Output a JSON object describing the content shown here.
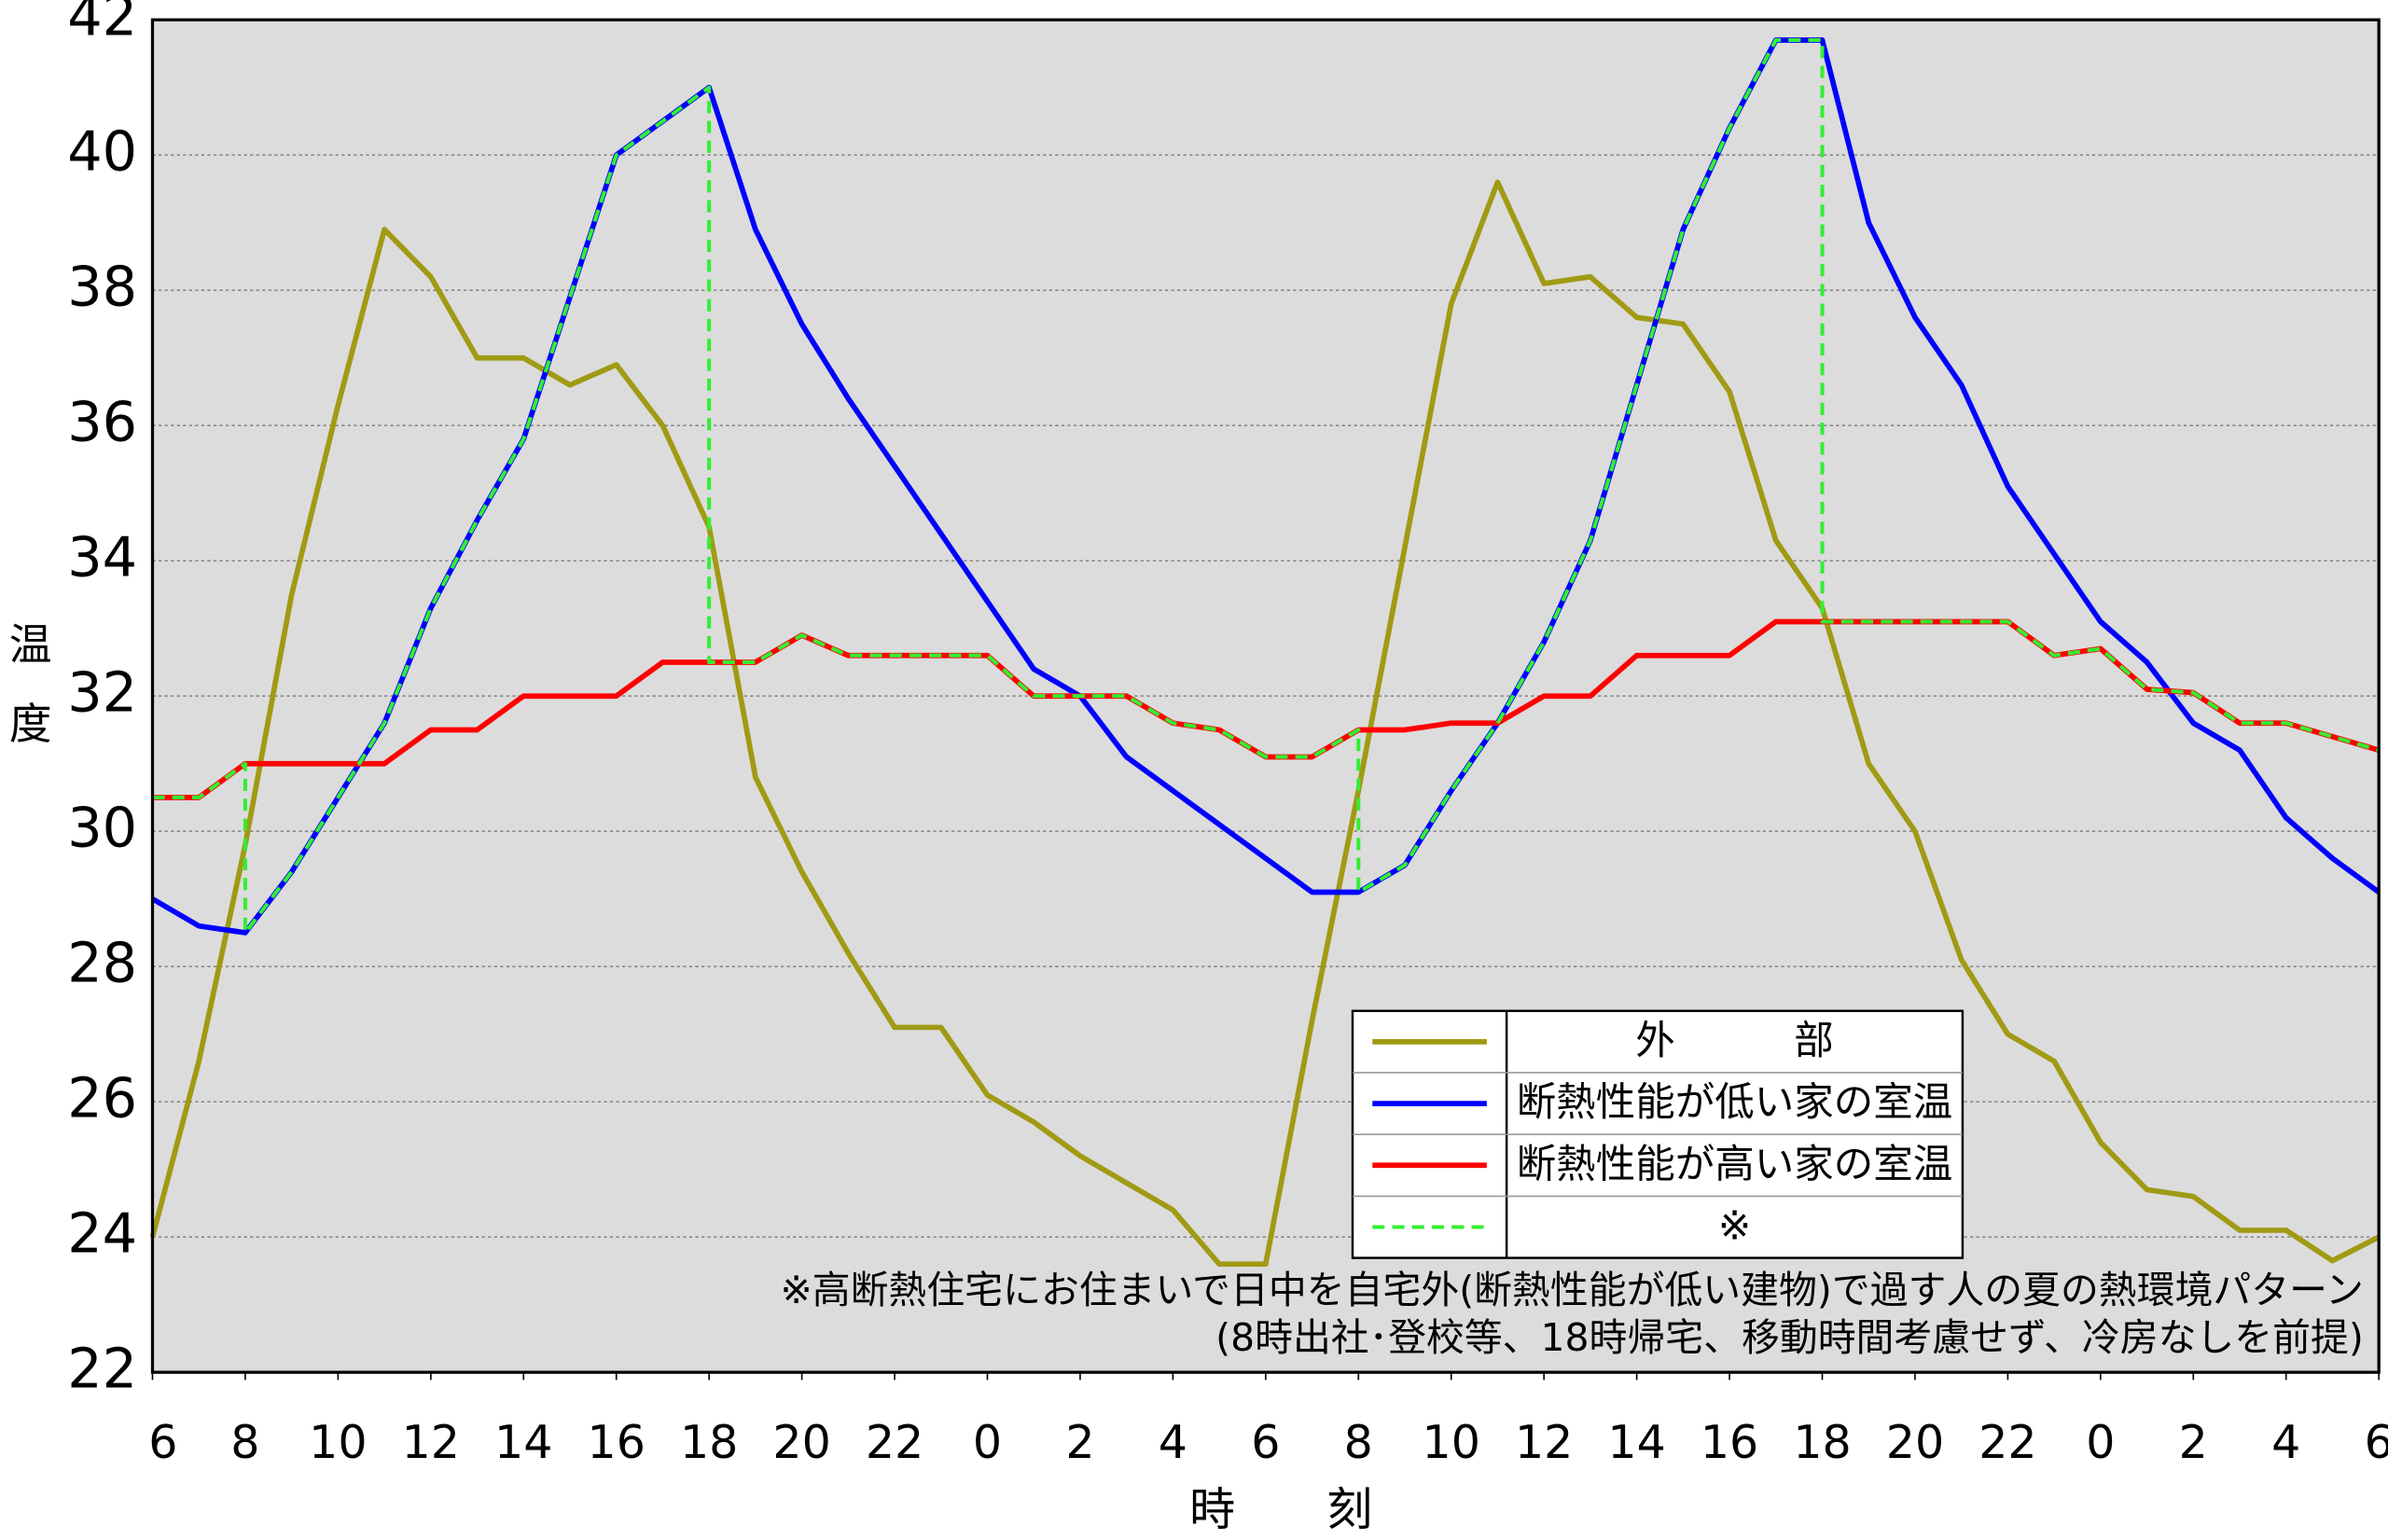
{
  "chart_data": {
    "type": "line",
    "x_label": "時　　刻",
    "y_label": "温度",
    "x": [
      0,
      1,
      2,
      3,
      4,
      5,
      6,
      7,
      8,
      9,
      10,
      11,
      12,
      13,
      14,
      15,
      16,
      17,
      18,
      19,
      20,
      21,
      22,
      23,
      24,
      25,
      26,
      27,
      28,
      29,
      30,
      31,
      32,
      33,
      34,
      35,
      36,
      37,
      38,
      39,
      40,
      41,
      42,
      43,
      44,
      45,
      46,
      47,
      48
    ],
    "xlim": [
      0,
      48
    ],
    "xticks": [
      {
        "value": 0,
        "label": "6"
      },
      {
        "value": 2,
        "label": "8"
      },
      {
        "value": 4,
        "label": "10"
      },
      {
        "value": 6,
        "label": "12"
      },
      {
        "value": 8,
        "label": "14"
      },
      {
        "value": 10,
        "label": "16"
      },
      {
        "value": 12,
        "label": "18"
      },
      {
        "value": 14,
        "label": "20"
      },
      {
        "value": 16,
        "label": "22"
      },
      {
        "value": 18,
        "label": "0"
      },
      {
        "value": 20,
        "label": "2"
      },
      {
        "value": 22,
        "label": "4"
      },
      {
        "value": 24,
        "label": "6"
      },
      {
        "value": 26,
        "label": "8"
      },
      {
        "value": 28,
        "label": "10"
      },
      {
        "value": 30,
        "label": "12"
      },
      {
        "value": 32,
        "label": "14"
      },
      {
        "value": 34,
        "label": "16"
      },
      {
        "value": 36,
        "label": "18"
      },
      {
        "value": 38,
        "label": "20"
      },
      {
        "value": 40,
        "label": "22"
      },
      {
        "value": 42,
        "label": "0"
      },
      {
        "value": 44,
        "label": "2"
      },
      {
        "value": 46,
        "label": "4"
      },
      {
        "value": 48,
        "label": "6"
      }
    ],
    "ylim": [
      22,
      42
    ],
    "yticks": [
      22,
      24,
      26,
      28,
      30,
      32,
      34,
      36,
      38,
      40,
      42
    ],
    "grid": true,
    "series": [
      {
        "name": "外　　　部",
        "color": "#a09a14",
        "values": [
          24.0,
          26.6,
          29.8,
          33.5,
          36.3,
          38.9,
          38.2,
          37.0,
          37.0,
          36.6,
          36.9,
          36.0,
          34.5,
          30.8,
          29.4,
          28.2,
          27.1,
          27.1,
          26.1,
          25.7,
          25.2,
          24.8,
          24.4,
          23.6,
          23.6,
          27.2,
          30.6,
          34.2,
          37.8,
          39.6,
          38.1,
          38.2,
          37.6,
          37.5,
          36.5,
          34.3,
          33.3,
          31.0,
          30.0,
          28.1,
          27.0,
          26.6,
          25.4,
          24.7,
          24.6,
          24.1,
          24.1,
          23.65,
          24.0
        ]
      },
      {
        "name": "断熱性能が低い家の室温",
        "color": "#0000ff",
        "values": [
          29.0,
          28.6,
          28.5,
          29.4,
          30.5,
          31.6,
          33.3,
          34.6,
          35.8,
          37.9,
          40.0,
          40.5,
          41.0,
          38.9,
          37.5,
          36.4,
          35.4,
          34.4,
          33.4,
          32.4,
          32.0,
          31.1,
          30.6,
          30.1,
          29.6,
          29.1,
          29.1,
          29.5,
          30.6,
          31.6,
          32.8,
          34.3,
          36.6,
          38.9,
          40.4,
          41.7,
          41.7,
          39.0,
          37.6,
          36.6,
          35.1,
          34.1,
          33.1,
          32.5,
          31.6,
          31.2,
          30.2,
          29.6,
          29.1
        ]
      },
      {
        "name": "断熱性能が高い家の室温",
        "color": "#ff0000",
        "values": [
          30.5,
          30.5,
          31.0,
          31.0,
          31.0,
          31.0,
          31.5,
          31.5,
          32.0,
          32.0,
          32.0,
          32.5,
          32.5,
          32.5,
          32.9,
          32.6,
          32.6,
          32.6,
          32.6,
          32.0,
          32.0,
          32.0,
          31.6,
          31.5,
          31.1,
          31.1,
          31.5,
          31.5,
          31.6,
          31.6,
          32.0,
          32.0,
          32.6,
          32.6,
          32.6,
          33.1,
          33.1,
          33.1,
          33.1,
          33.1,
          33.1,
          32.6,
          32.7,
          32.1,
          32.05,
          31.6,
          31.6,
          31.4,
          31.2
        ]
      },
      {
        "name": "※",
        "color": "#33ee33",
        "dashed": true,
        "x": [
          0,
          1,
          2,
          2,
          3,
          4,
          5,
          6,
          7,
          8,
          9,
          10,
          11,
          12,
          12,
          13,
          14,
          15,
          16,
          17,
          18,
          19,
          20,
          21,
          22,
          23,
          24,
          25,
          26,
          26,
          27,
          28,
          29,
          30,
          31,
          32,
          33,
          34,
          35,
          36,
          36,
          37,
          38,
          39,
          40,
          41,
          42,
          43,
          44,
          45,
          46,
          47,
          48
        ],
        "values": [
          30.5,
          30.5,
          31.0,
          28.5,
          29.4,
          30.5,
          31.6,
          33.3,
          34.6,
          35.8,
          37.9,
          40.0,
          40.5,
          41.0,
          32.5,
          32.5,
          32.9,
          32.6,
          32.6,
          32.6,
          32.6,
          32.0,
          32.0,
          32.0,
          31.6,
          31.5,
          31.1,
          31.1,
          31.5,
          29.1,
          29.5,
          30.6,
          31.6,
          32.8,
          34.3,
          36.6,
          38.9,
          40.4,
          41.7,
          41.7,
          33.1,
          33.1,
          33.1,
          33.1,
          33.1,
          32.6,
          32.7,
          32.1,
          32.05,
          31.6,
          31.6,
          31.4,
          31.2
        ]
      }
    ],
    "note": [
      "※高断熱住宅にお住まいで日中を自宅外(断熱性能が低い建物)で過す人の夏の熱環境パターン",
      "(8時出社･登校等、18時帰宅、移動時間考慮せず、冷房なしを前提)"
    ]
  }
}
